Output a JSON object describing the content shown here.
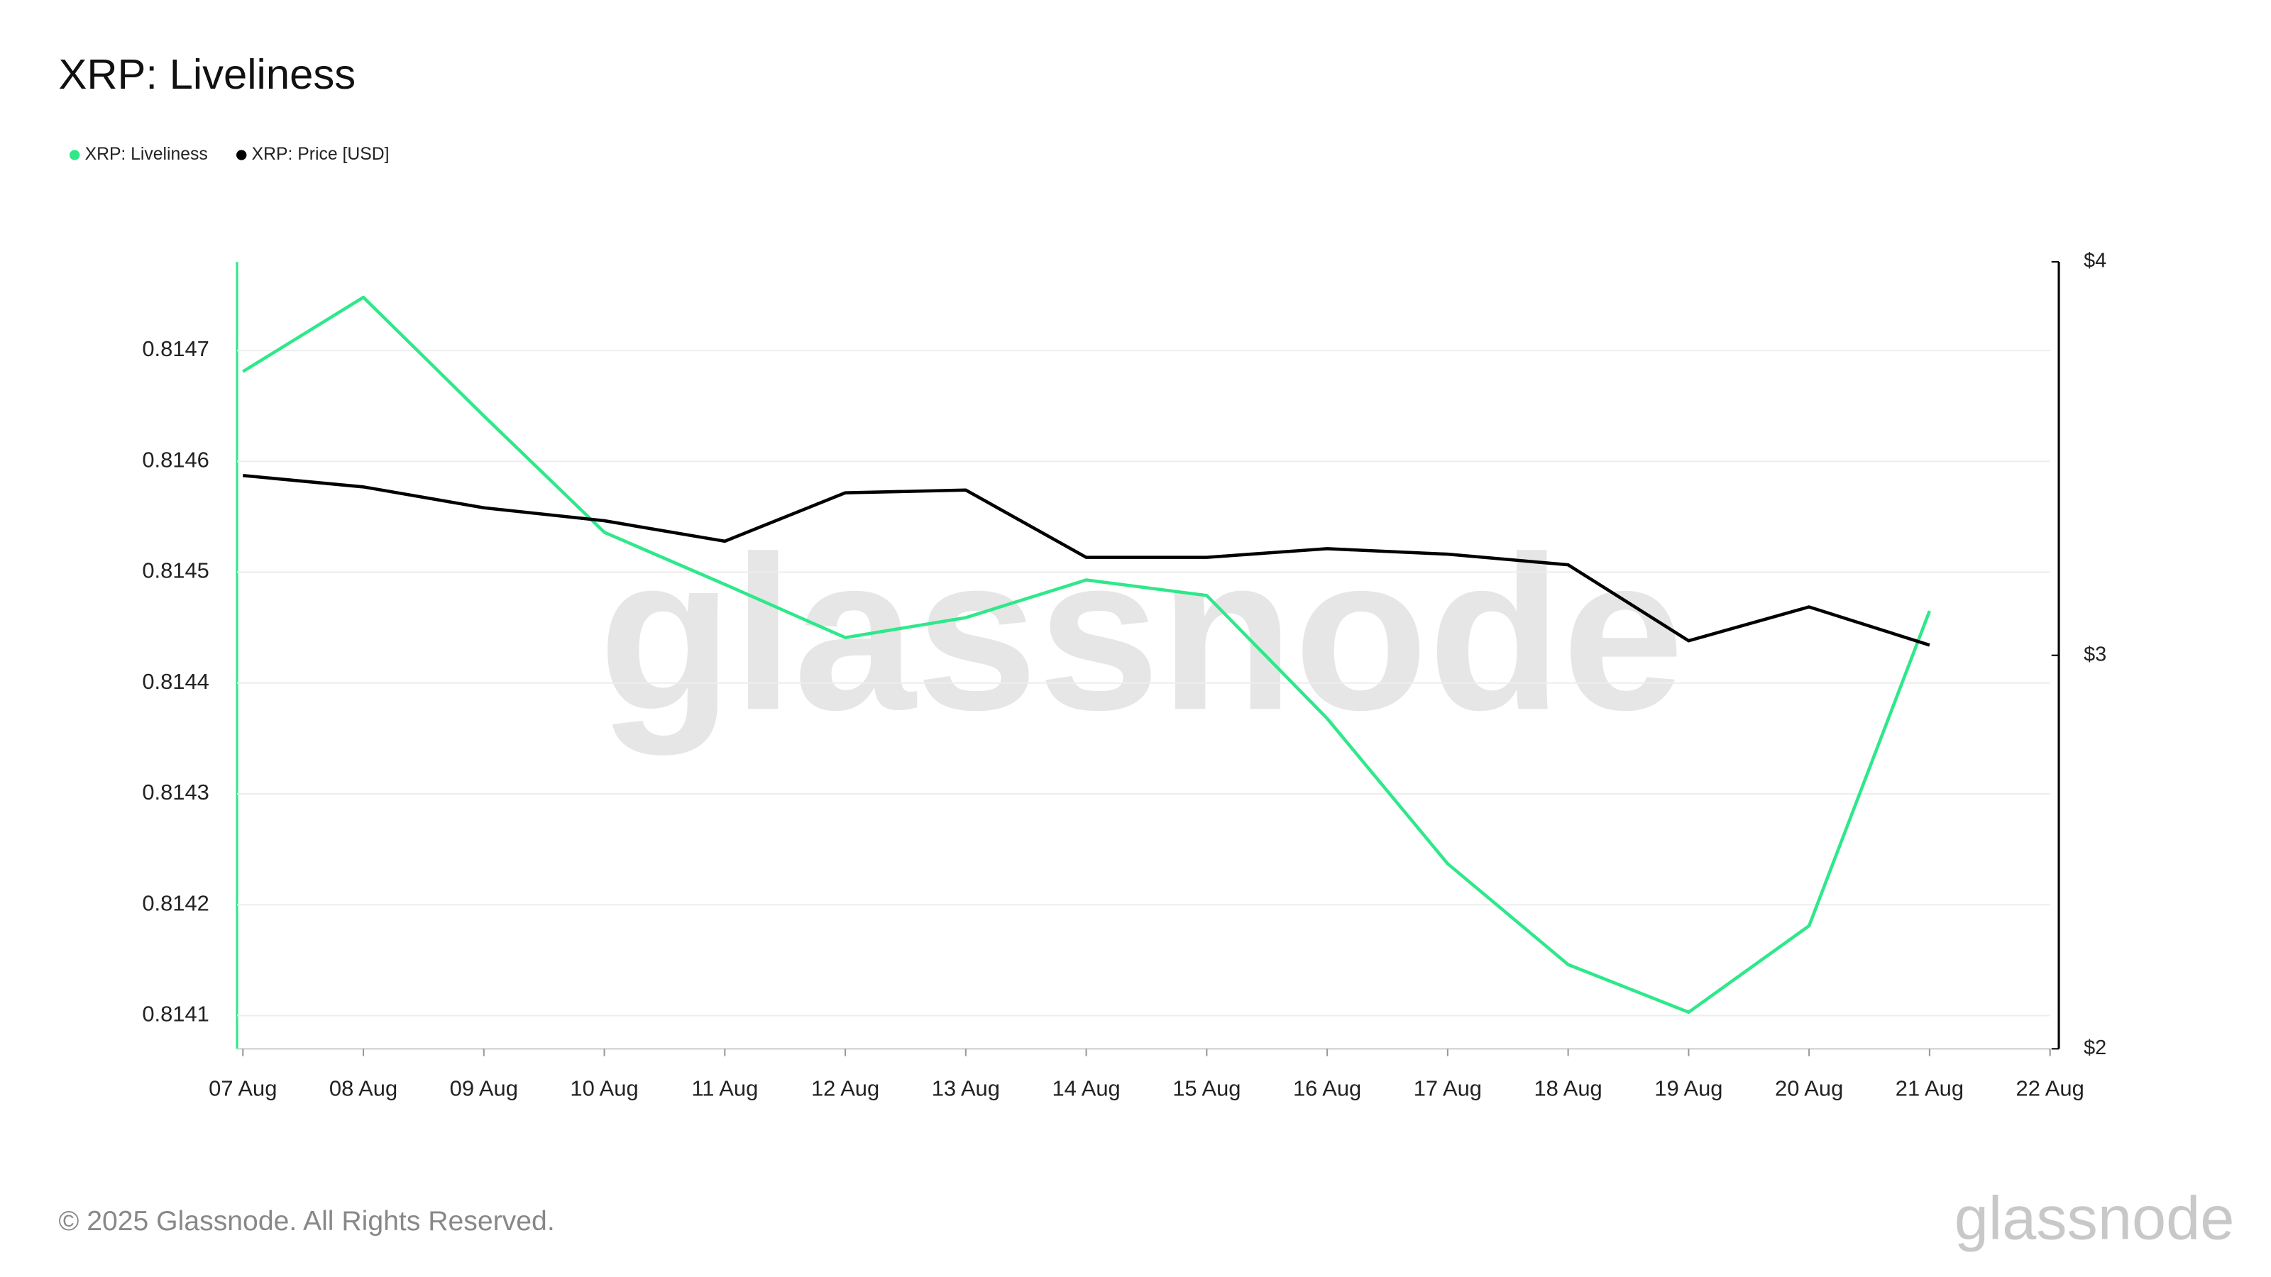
{
  "chart_data": {
    "type": "line",
    "title": "XRP: Liveliness",
    "categories": [
      "07 Aug",
      "08 Aug",
      "09 Aug",
      "10 Aug",
      "11 Aug",
      "12 Aug",
      "13 Aug",
      "14 Aug",
      "15 Aug",
      "16 Aug",
      "17 Aug",
      "18 Aug",
      "19 Aug",
      "20 Aug",
      "21 Aug",
      "22 Aug"
    ],
    "series": [
      {
        "name": "XRP: Liveliness",
        "color": "#2ee88a",
        "values": [
          0.814681,
          0.814748,
          0.814641,
          0.814536,
          0.814489,
          0.814441,
          0.814459,
          0.814493,
          0.814479,
          0.814368,
          0.814237,
          0.814146,
          0.814103,
          0.814181,
          0.814465,
          null
        ]
      },
      {
        "name": "XRP: Price [USD]",
        "color": "#000000",
        "axis": "y2",
        "values": [
          3.457,
          3.428,
          3.375,
          3.342,
          3.29,
          3.413,
          3.42,
          3.249,
          3.249,
          3.271,
          3.257,
          3.23,
          3.037,
          3.123,
          3.026,
          null
        ]
      }
    ],
    "ylim": [
      0.81407,
      0.81478
    ],
    "yticks": [
      0.8141,
      0.8142,
      0.8143,
      0.8144,
      0.8145,
      0.8146,
      0.8147
    ],
    "y2lim": [
      2,
      4
    ],
    "y2ticks": [
      {
        "value": 2,
        "label": "$2"
      },
      {
        "value": 3,
        "label": "$3"
      },
      {
        "value": 4,
        "label": "$4"
      }
    ],
    "grid": true,
    "legend": "top-left",
    "watermark": "glassnode",
    "footer": "© 2025 Glassnode. All Rights Reserved.",
    "logo": "glassnode"
  }
}
